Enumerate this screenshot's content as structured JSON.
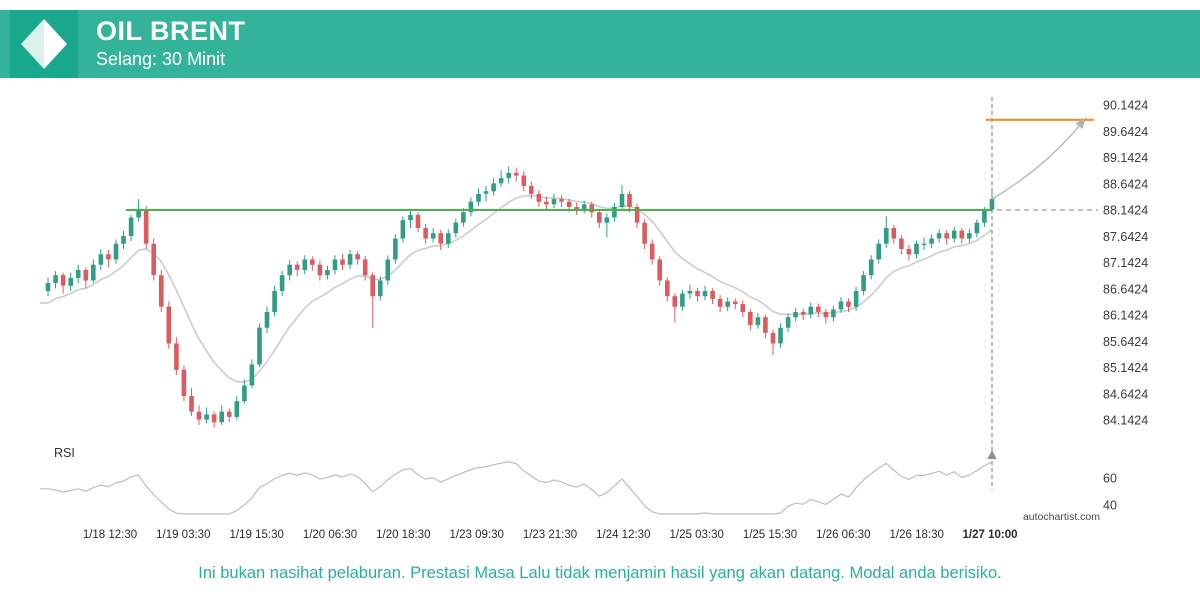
{
  "header": {
    "title": "OIL BRENT",
    "subtitle": "Selang: 30 Minit",
    "bg_color": "#32b39a",
    "logo_bg_color": "#1aa88c",
    "logo_icon": "diamond"
  },
  "watermark": "autochartist.com",
  "footer": {
    "disclaimer": "Ini bukan nasihat pelaburan. Prestasi Masa Lalu tidak menjamin hasil yang akan datang. Modal anda berisiko.",
    "color": "#2aaf9e"
  },
  "chart_data": {
    "type": "candlestick",
    "instrument": "OIL BRENT",
    "interval": "30 Minit",
    "y_axis": {
      "side": "right",
      "ticks": [
        "90.1424",
        "89.6424",
        "89.1424",
        "88.6424",
        "88.1424",
        "87.6424",
        "87.1424",
        "86.6424",
        "86.1424",
        "85.6424",
        "85.1424",
        "84.6424",
        "84.1424"
      ]
    },
    "x_axis": {
      "ticks": [
        "1/18 12:30",
        "1/19 03:30",
        "1/19 15:30",
        "1/20 06:30",
        "1/20 18:30",
        "1/23 09:30",
        "1/23 21:30",
        "1/24 12:30",
        "1/25 03:30",
        "1/25 15:30",
        "1/26 06:30",
        "1/26 18:30",
        "1/27 10:00"
      ],
      "bold_last": true
    },
    "rsi_panel": {
      "label": "RSI",
      "ticks": [
        60,
        40
      ]
    },
    "levels": {
      "resistance": 88.1424,
      "forecast_target": 89.86
    },
    "forecast": {
      "end_price": 89.9,
      "direction": "up"
    },
    "colors": {
      "up": "#2f9e85",
      "down": "#df5a5f",
      "ma": "#cccccc",
      "resistance": "#43b649",
      "target": "#ef9126",
      "forecast": "#b3b3b3",
      "rsi": "#bdbdbd",
      "axis_text": "#3a3a3a"
    },
    "candles": [
      [
        86.6,
        86.85,
        86.5,
        86.75
      ],
      [
        86.75,
        86.98,
        86.65,
        86.9
      ],
      [
        86.9,
        86.95,
        86.55,
        86.7
      ],
      [
        86.7,
        86.95,
        86.6,
        86.85
      ],
      [
        86.85,
        87.1,
        86.75,
        87.0
      ],
      [
        87.0,
        87.05,
        86.65,
        86.8
      ],
      [
        86.8,
        87.2,
        86.75,
        87.1
      ],
      [
        87.1,
        87.4,
        87.0,
        87.3
      ],
      [
        87.3,
        87.38,
        87.05,
        87.2
      ],
      [
        87.2,
        87.58,
        87.12,
        87.5
      ],
      [
        87.5,
        87.75,
        87.4,
        87.65
      ],
      [
        87.65,
        88.05,
        87.55,
        88.0
      ],
      [
        88.0,
        88.35,
        87.92,
        88.15
      ],
      [
        88.15,
        88.22,
        87.4,
        87.5
      ],
      [
        87.5,
        87.6,
        86.8,
        86.9
      ],
      [
        86.9,
        87.0,
        86.2,
        86.3
      ],
      [
        86.3,
        86.4,
        85.5,
        85.6
      ],
      [
        85.6,
        85.72,
        85.0,
        85.1
      ],
      [
        85.1,
        85.18,
        84.5,
        84.6
      ],
      [
        84.6,
        84.75,
        84.22,
        84.3
      ],
      [
        84.3,
        84.42,
        84.05,
        84.15
      ],
      [
        84.15,
        84.38,
        84.08,
        84.25
      ],
      [
        84.25,
        84.3,
        84.0,
        84.1
      ],
      [
        84.1,
        84.42,
        84.05,
        84.3
      ],
      [
        84.3,
        84.36,
        84.1,
        84.2
      ],
      [
        84.2,
        84.6,
        84.15,
        84.5
      ],
      [
        84.5,
        84.92,
        84.45,
        84.8
      ],
      [
        84.8,
        85.3,
        84.75,
        85.2
      ],
      [
        85.2,
        85.98,
        85.15,
        85.9
      ],
      [
        85.9,
        86.3,
        85.8,
        86.2
      ],
      [
        86.2,
        86.7,
        86.12,
        86.6
      ],
      [
        86.6,
        86.98,
        86.5,
        86.9
      ],
      [
        86.9,
        87.18,
        86.8,
        87.1
      ],
      [
        87.1,
        87.16,
        86.88,
        87.0
      ],
      [
        87.0,
        87.28,
        86.92,
        87.2
      ],
      [
        87.2,
        87.26,
        86.98,
        87.1
      ],
      [
        87.1,
        87.18,
        86.8,
        86.9
      ],
      [
        86.9,
        87.08,
        86.82,
        87.0
      ],
      [
        87.0,
        87.28,
        86.92,
        87.2
      ],
      [
        87.2,
        87.3,
        87.0,
        87.1
      ],
      [
        87.1,
        87.38,
        87.02,
        87.3
      ],
      [
        87.3,
        87.36,
        87.1,
        87.2
      ],
      [
        87.2,
        87.26,
        86.8,
        86.9
      ],
      [
        86.9,
        86.95,
        85.9,
        86.5
      ],
      [
        86.5,
        86.88,
        86.42,
        86.8
      ],
      [
        86.8,
        87.28,
        86.72,
        87.2
      ],
      [
        87.2,
        87.68,
        87.12,
        87.6
      ],
      [
        87.6,
        88.02,
        87.52,
        87.95
      ],
      [
        87.95,
        88.15,
        87.8,
        88.05
      ],
      [
        88.05,
        88.1,
        87.72,
        87.8
      ],
      [
        87.8,
        87.88,
        87.5,
        87.6
      ],
      [
        87.6,
        87.8,
        87.52,
        87.7
      ],
      [
        87.7,
        87.76,
        87.38,
        87.5
      ],
      [
        87.5,
        87.78,
        87.42,
        87.7
      ],
      [
        87.7,
        87.98,
        87.62,
        87.9
      ],
      [
        87.9,
        88.18,
        87.82,
        88.1
      ],
      [
        88.1,
        88.38,
        88.02,
        88.3
      ],
      [
        88.3,
        88.55,
        88.22,
        88.45
      ],
      [
        88.45,
        88.6,
        88.3,
        88.5
      ],
      [
        88.5,
        88.75,
        88.42,
        88.65
      ],
      [
        88.65,
        88.9,
        88.58,
        88.75
      ],
      [
        88.75,
        88.97,
        88.65,
        88.85
      ],
      [
        88.85,
        88.95,
        88.68,
        88.8
      ],
      [
        88.8,
        88.88,
        88.5,
        88.6
      ],
      [
        88.6,
        88.68,
        88.35,
        88.45
      ],
      [
        88.45,
        88.52,
        88.2,
        88.3
      ],
      [
        88.3,
        88.4,
        88.15,
        88.25
      ],
      [
        88.25,
        88.45,
        88.18,
        88.35
      ],
      [
        88.35,
        88.42,
        88.2,
        88.3
      ],
      [
        88.3,
        88.36,
        88.1,
        88.2
      ],
      [
        88.2,
        88.28,
        88.05,
        88.15
      ],
      [
        88.15,
        88.32,
        88.08,
        88.25
      ],
      [
        88.25,
        88.3,
        88.0,
        88.1
      ],
      [
        88.1,
        88.16,
        87.8,
        87.9
      ],
      [
        87.9,
        88.08,
        87.62,
        88.0
      ],
      [
        88.0,
        88.28,
        87.92,
        88.2
      ],
      [
        88.2,
        88.62,
        88.12,
        88.45
      ],
      [
        88.45,
        88.5,
        88.1,
        88.2
      ],
      [
        88.2,
        88.26,
        87.8,
        87.9
      ],
      [
        87.9,
        87.96,
        87.4,
        87.5
      ],
      [
        87.5,
        87.58,
        87.1,
        87.2
      ],
      [
        87.2,
        87.26,
        86.7,
        86.8
      ],
      [
        86.8,
        86.86,
        86.4,
        86.5
      ],
      [
        86.5,
        86.56,
        86.0,
        86.3
      ],
      [
        86.3,
        86.62,
        86.22,
        86.55
      ],
      [
        86.55,
        86.72,
        86.45,
        86.6
      ],
      [
        86.6,
        86.66,
        86.4,
        86.5
      ],
      [
        86.5,
        86.7,
        86.42,
        86.6
      ],
      [
        86.6,
        86.65,
        86.35,
        86.45
      ],
      [
        86.45,
        86.52,
        86.2,
        86.3
      ],
      [
        86.3,
        86.48,
        86.22,
        86.4
      ],
      [
        86.4,
        86.46,
        86.25,
        86.35
      ],
      [
        86.35,
        86.42,
        86.1,
        86.2
      ],
      [
        86.2,
        86.26,
        85.85,
        85.95
      ],
      [
        85.95,
        86.18,
        85.88,
        86.1
      ],
      [
        86.1,
        86.15,
        85.7,
        85.8
      ],
      [
        85.8,
        85.86,
        85.38,
        85.6
      ],
      [
        85.6,
        85.98,
        85.52,
        85.9
      ],
      [
        85.9,
        86.18,
        85.82,
        86.1
      ],
      [
        86.1,
        86.28,
        86.02,
        86.2
      ],
      [
        86.2,
        86.26,
        86.05,
        86.15
      ],
      [
        86.15,
        86.38,
        86.08,
        86.3
      ],
      [
        86.3,
        86.36,
        86.1,
        86.2
      ],
      [
        86.2,
        86.26,
        85.98,
        86.1
      ],
      [
        86.1,
        86.32,
        86.02,
        86.25
      ],
      [
        86.25,
        86.48,
        86.18,
        86.4
      ],
      [
        86.4,
        86.46,
        86.2,
        86.3
      ],
      [
        86.3,
        86.68,
        86.22,
        86.6
      ],
      [
        86.6,
        86.98,
        86.52,
        86.9
      ],
      [
        86.9,
        87.28,
        86.82,
        87.2
      ],
      [
        87.2,
        87.58,
        87.12,
        87.5
      ],
      [
        87.5,
        88.02,
        87.42,
        87.8
      ],
      [
        87.8,
        87.86,
        87.5,
        87.6
      ],
      [
        87.6,
        87.66,
        87.3,
        87.4
      ],
      [
        87.4,
        87.48,
        87.18,
        87.3
      ],
      [
        87.3,
        87.56,
        87.22,
        87.5
      ],
      [
        87.5,
        87.62,
        87.38,
        87.5
      ],
      [
        87.5,
        87.68,
        87.42,
        87.6
      ],
      [
        87.6,
        87.78,
        87.52,
        87.7
      ],
      [
        87.7,
        87.76,
        87.48,
        87.6
      ],
      [
        87.6,
        87.82,
        87.52,
        87.75
      ],
      [
        87.75,
        87.8,
        87.5,
        87.6
      ],
      [
        87.6,
        87.78,
        87.52,
        87.7
      ],
      [
        87.7,
        87.96,
        87.62,
        87.9
      ],
      [
        87.9,
        88.2,
        87.82,
        88.15
      ],
      [
        88.15,
        88.52,
        88.08,
        88.35
      ]
    ]
  }
}
